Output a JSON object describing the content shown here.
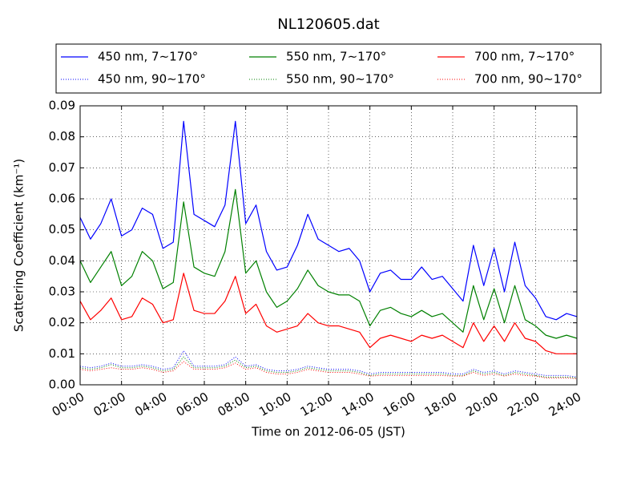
{
  "chart_data": {
    "type": "line",
    "title": "NL120605.dat",
    "x_label": "Time on 2012-06-05 (JST)",
    "y_label": "Scattering Coefficient (km⁻¹)",
    "grid": true,
    "xlim": [
      0,
      24
    ],
    "xticks": [
      {
        "value": 0,
        "label": "00:00"
      },
      {
        "value": 2,
        "label": "02:00"
      },
      {
        "value": 4,
        "label": "04:00"
      },
      {
        "value": 6,
        "label": "06:00"
      },
      {
        "value": 8,
        "label": "08:00"
      },
      {
        "value": 10,
        "label": "10:00"
      },
      {
        "value": 12,
        "label": "12:00"
      },
      {
        "value": 14,
        "label": "14:00"
      },
      {
        "value": 16,
        "label": "16:00"
      },
      {
        "value": 18,
        "label": "18:00"
      },
      {
        "value": 20,
        "label": "20:00"
      },
      {
        "value": 22,
        "label": "22:00"
      },
      {
        "value": 24,
        "label": "24:00"
      }
    ],
    "ylim": [
      0,
      0.09
    ],
    "yticks": [
      {
        "value": 0,
        "label": "0.00"
      },
      0.01,
      0.02,
      0.03,
      0.04,
      0.05,
      0.06,
      0.07,
      0.08,
      0.09
    ],
    "x": [
      0,
      0.5,
      1,
      1.5,
      2,
      2.5,
      3,
      3.5,
      4,
      4.5,
      5,
      5.5,
      6,
      6.5,
      7,
      7.5,
      8,
      8.5,
      9,
      9.5,
      10,
      10.5,
      11,
      11.5,
      12,
      12.5,
      13,
      13.5,
      14,
      14.5,
      15,
      15.5,
      16,
      16.5,
      17,
      17.5,
      18,
      18.5,
      19,
      19.5,
      20,
      20.5,
      21,
      21.5,
      22,
      22.5,
      23,
      23.5,
      24
    ],
    "series": [
      {
        "name": "450 nm, 7∼170°",
        "color": "#0000ff",
        "linestyle": "solid",
        "values": [
          0.054,
          0.047,
          0.052,
          0.06,
          0.048,
          0.05,
          0.057,
          0.055,
          0.044,
          0.046,
          0.085,
          0.055,
          0.053,
          0.051,
          0.058,
          0.085,
          0.052,
          0.058,
          0.043,
          0.037,
          0.038,
          0.045,
          0.055,
          0.047,
          0.045,
          0.043,
          0.044,
          0.04,
          0.03,
          0.036,
          0.037,
          0.034,
          0.034,
          0.038,
          0.034,
          0.035,
          0.031,
          0.027,
          0.045,
          0.032,
          0.044,
          0.03,
          0.046,
          0.032,
          0.028,
          0.022,
          0.021,
          0.023,
          0.022
        ]
      },
      {
        "name": "450 nm, 90∼170°",
        "color": "#0000ff",
        "linestyle": "dotted",
        "values": [
          0.006,
          0.0055,
          0.006,
          0.007,
          0.006,
          0.006,
          0.0065,
          0.006,
          0.005,
          0.0055,
          0.011,
          0.006,
          0.006,
          0.006,
          0.0065,
          0.009,
          0.006,
          0.0065,
          0.005,
          0.0045,
          0.0045,
          0.005,
          0.006,
          0.0055,
          0.005,
          0.005,
          0.005,
          0.0045,
          0.0035,
          0.004,
          0.004,
          0.004,
          0.004,
          0.004,
          0.004,
          0.004,
          0.0035,
          0.0035,
          0.005,
          0.004,
          0.0045,
          0.0035,
          0.0045,
          0.004,
          0.0035,
          0.003,
          0.003,
          0.003,
          0.0025
        ]
      },
      {
        "name": "550 nm, 7∼170°",
        "color": "#008000",
        "linestyle": "solid",
        "values": [
          0.04,
          0.033,
          0.038,
          0.043,
          0.032,
          0.035,
          0.043,
          0.04,
          0.031,
          0.033,
          0.059,
          0.038,
          0.036,
          0.035,
          0.043,
          0.063,
          0.036,
          0.04,
          0.03,
          0.025,
          0.027,
          0.031,
          0.037,
          0.032,
          0.03,
          0.029,
          0.029,
          0.027,
          0.019,
          0.024,
          0.025,
          0.023,
          0.022,
          0.024,
          0.022,
          0.023,
          0.02,
          0.017,
          0.032,
          0.021,
          0.031,
          0.02,
          0.032,
          0.021,
          0.019,
          0.016,
          0.015,
          0.016,
          0.015
        ]
      },
      {
        "name": "550 nm, 90∼170°",
        "color": "#008000",
        "linestyle": "dotted",
        "values": [
          0.0055,
          0.005,
          0.0055,
          0.0065,
          0.0055,
          0.0055,
          0.006,
          0.0055,
          0.0045,
          0.005,
          0.009,
          0.0055,
          0.0055,
          0.0055,
          0.006,
          0.008,
          0.0055,
          0.006,
          0.0045,
          0.004,
          0.004,
          0.0045,
          0.0055,
          0.005,
          0.0045,
          0.0045,
          0.0045,
          0.004,
          0.003,
          0.0035,
          0.0035,
          0.0035,
          0.0035,
          0.0035,
          0.0035,
          0.0035,
          0.003,
          0.003,
          0.0045,
          0.0035,
          0.004,
          0.003,
          0.004,
          0.0035,
          0.003,
          0.0025,
          0.0025,
          0.0025,
          0.0022
        ]
      },
      {
        "name": "700 nm, 7∼170°",
        "color": "#ff0000",
        "linestyle": "solid",
        "values": [
          0.027,
          0.021,
          0.024,
          0.028,
          0.021,
          0.022,
          0.028,
          0.026,
          0.02,
          0.021,
          0.036,
          0.024,
          0.023,
          0.023,
          0.027,
          0.035,
          0.023,
          0.026,
          0.019,
          0.017,
          0.018,
          0.019,
          0.023,
          0.02,
          0.019,
          0.019,
          0.018,
          0.017,
          0.012,
          0.015,
          0.016,
          0.015,
          0.014,
          0.016,
          0.015,
          0.016,
          0.014,
          0.012,
          0.02,
          0.014,
          0.019,
          0.014,
          0.02,
          0.015,
          0.014,
          0.011,
          0.01,
          0.01,
          0.01
        ]
      },
      {
        "name": "700 nm, 90∼170°",
        "color": "#ff0000",
        "linestyle": "dotted",
        "values": [
          0.005,
          0.0045,
          0.005,
          0.0055,
          0.005,
          0.005,
          0.0055,
          0.005,
          0.004,
          0.0045,
          0.0075,
          0.005,
          0.005,
          0.005,
          0.0055,
          0.007,
          0.005,
          0.0055,
          0.004,
          0.0035,
          0.0035,
          0.004,
          0.005,
          0.0045,
          0.004,
          0.004,
          0.004,
          0.0035,
          0.0028,
          0.003,
          0.003,
          0.003,
          0.003,
          0.003,
          0.003,
          0.003,
          0.0028,
          0.0028,
          0.004,
          0.003,
          0.0035,
          0.0028,
          0.0035,
          0.003,
          0.0028,
          0.0022,
          0.0022,
          0.0022,
          0.002
        ]
      }
    ]
  }
}
